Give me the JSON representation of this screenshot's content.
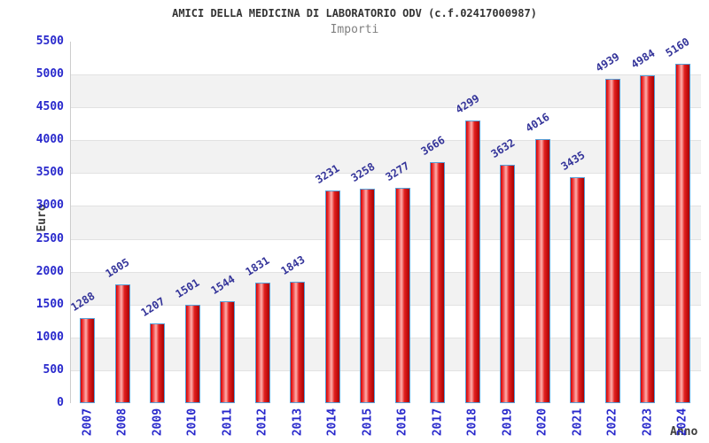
{
  "chart_data": {
    "type": "bar",
    "title": "AMICI DELLA MEDICINA DI LABORATORIO ODV (c.f.02417000987)",
    "subtitle": "Importi",
    "xlabel": "Anno",
    "ylabel": "Euro",
    "categories": [
      "2007",
      "2008",
      "2009",
      "2010",
      "2011",
      "2012",
      "2013",
      "2014",
      "2015",
      "2016",
      "2017",
      "2018",
      "2019",
      "2020",
      "2021",
      "2022",
      "2023",
      "2024"
    ],
    "values": [
      1288,
      1805,
      1207,
      1501,
      1544,
      1831,
      1843,
      3231,
      3258,
      3277,
      3666,
      4299,
      3632,
      4016,
      3435,
      4939,
      4984,
      5160
    ],
    "ylim": [
      0,
      5500
    ],
    "ytick_step": 500,
    "grid": "horizontal-alternating-bands",
    "legend": "none",
    "colors": {
      "bar_border": "#55a0d8",
      "bar_gradient": [
        "#d40000",
        "#f04040",
        "#ffb0ac",
        "#e22020",
        "#a80000"
      ],
      "value_label": "#333399",
      "tick_label": "#2828cc",
      "band_gray": "#f2f2f2",
      "band_white": "#ffffff",
      "gridline": "#e2e2e2",
      "plot_border": "#cccccc",
      "title_color": "#333333",
      "subtitle_color": "#808080",
      "axis_title_color": "#404040",
      "background": "#ffffff"
    }
  }
}
